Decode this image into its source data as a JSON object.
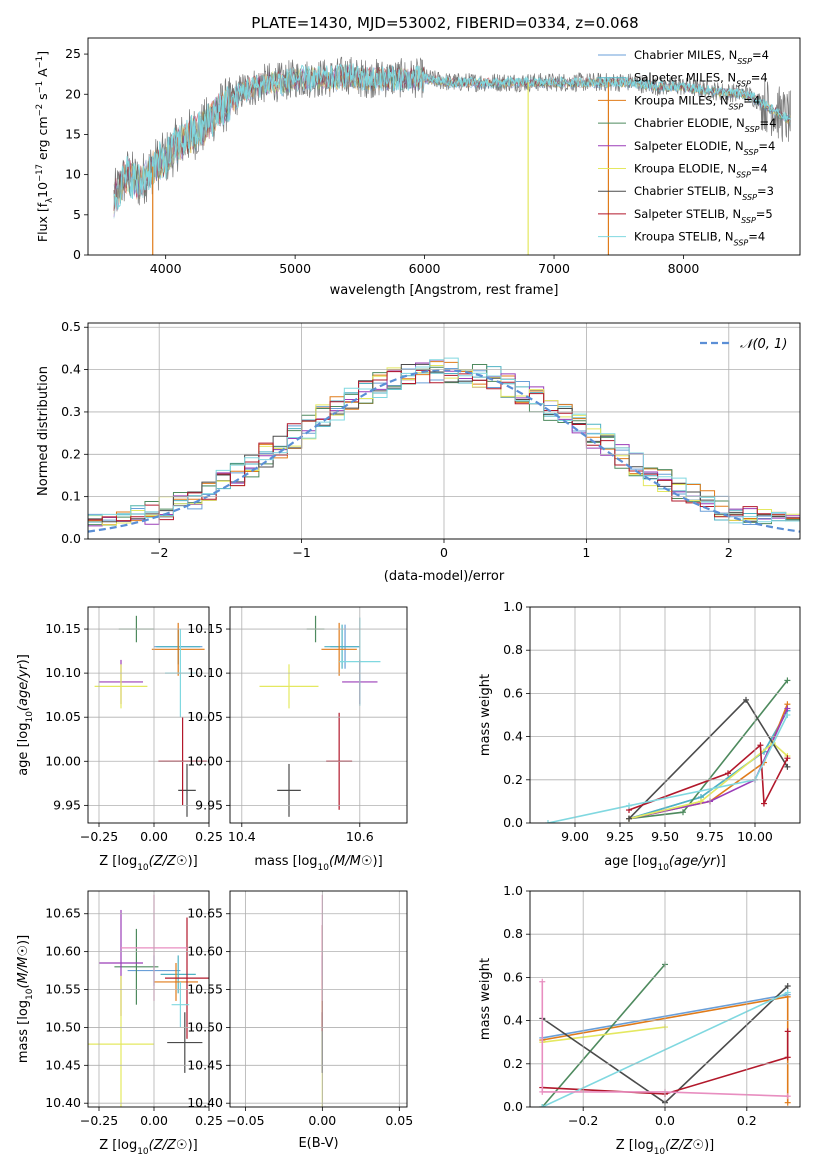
{
  "figure": {
    "title": "PLATE=1430, MJD=53002, FIBERID=0334, z=0.068"
  },
  "series_styles": [
    {
      "name": "Chabrier MILES",
      "color": "#6a9fd8"
    },
    {
      "name": "Salpeter MILES",
      "color": "#4fb3c4"
    },
    {
      "name": "Kroupa MILES",
      "color": "#e07b1a"
    },
    {
      "name": "Chabrier ELODIE",
      "color": "#4e8a5e"
    },
    {
      "name": "Salpeter ELODIE",
      "color": "#9b3db8"
    },
    {
      "name": "Kroupa ELODIE",
      "color": "#e4e860"
    },
    {
      "name": "Chabrier STELIB",
      "color": "#4b4b4b"
    },
    {
      "name": "Salpeter STELIB",
      "color": "#b2182b"
    },
    {
      "name": "Kroupa STELIB",
      "color": "#80d8e0"
    }
  ],
  "chart_data": [
    {
      "id": "spectrum",
      "type": "line",
      "xlabel": "wavelength [Angstrom, rest frame]",
      "ylabel": "Flux [f_λ10^-17 erg cm^-2 s^-1 A^-1]",
      "xlim": [
        3400,
        8900
      ],
      "ylim": [
        0,
        27
      ],
      "x_ticks": [
        4000,
        5000,
        6000,
        7000,
        8000
      ],
      "y_ticks": [
        0,
        5,
        10,
        15,
        20,
        25
      ],
      "grid": false,
      "legend_position": "top-right",
      "legend": [
        {
          "label": "Chabrier MILES, N_SSP=4",
          "color": "#6a9fd8"
        },
        {
          "label": "Salpeter MILES, N_SSP=4",
          "color": "#4fb3c4"
        },
        {
          "label": "Kroupa MILES, N_SSP=4",
          "color": "#e07b1a"
        },
        {
          "label": "Chabrier ELODIE, N_SSP=4",
          "color": "#4e8a5e"
        },
        {
          "label": "Salpeter ELODIE, N_SSP=4",
          "color": "#9b3db8"
        },
        {
          "label": "Kroupa ELODIE, N_SSP=4",
          "color": "#e4e860"
        },
        {
          "label": "Chabrier STELIB, N_SSP=3",
          "color": "#4b4b4b"
        },
        {
          "label": "Salpeter STELIB, N_SSP=5",
          "color": "#b2182b"
        },
        {
          "label": "Kroupa STELIB, N_SSP=4",
          "color": "#80d8e0"
        }
      ],
      "data_envelope": {
        "x": [
          3600,
          3700,
          3800,
          3900,
          4000,
          4100,
          4200,
          4300,
          4400,
          4500,
          4600,
          4700,
          4800,
          4900,
          5000,
          5100,
          5200,
          5300,
          5400,
          5500,
          5600,
          5700,
          5800,
          5900,
          6000,
          6200,
          6400,
          6600,
          6800,
          7000,
          7200,
          7400,
          7600,
          7800,
          8000,
          8200,
          8500,
          8800
        ],
        "y": [
          7,
          10,
          9,
          11,
          12,
          14,
          15,
          16,
          18,
          19,
          20.5,
          21,
          21.5,
          21.5,
          22,
          22,
          22,
          22,
          22.5,
          22,
          22,
          22,
          22,
          22,
          22,
          21.5,
          21.5,
          21.5,
          21.5,
          21.5,
          21.5,
          21.5,
          21.5,
          21,
          21,
          20.5,
          20,
          17
        ]
      },
      "vertical_drops": [
        {
          "x": 3900,
          "color": "#e07b1a"
        },
        {
          "x": 6800,
          "color": "#e4e860"
        },
        {
          "x": 7420,
          "color": "#e07b1a"
        }
      ]
    },
    {
      "id": "residual_histogram",
      "type": "histogram",
      "xlabel": "(data-model)/error",
      "ylabel": "Normed distribution",
      "xlim": [
        -2.5,
        2.5
      ],
      "ylim": [
        0,
        0.51
      ],
      "x_ticks": [
        -2,
        -1,
        0,
        1,
        2
      ],
      "y_ticks": [
        0,
        0.1,
        0.2,
        0.3,
        0.4,
        0.5
      ],
      "grid": true,
      "legend_position": "top-right",
      "legend": [
        {
          "label": "N(0,1)",
          "style": "dashed",
          "color": "#5b8fd6"
        }
      ],
      "bin_width": 0.1,
      "bin_start": -2.5,
      "gaussian": {
        "mean": 0,
        "sigma": 1,
        "color": "#5b8fd6"
      }
    },
    {
      "id": "age_vs_Z",
      "type": "errorbar",
      "xlabel": "Z [log10(Z/Z☉)]",
      "ylabel": "age [log10(age/yr)]",
      "xlim": [
        -0.3,
        0.25
      ],
      "ylim": [
        9.93,
        10.175
      ],
      "x_ticks": [
        -0.25,
        0.0,
        0.25
      ],
      "y_ticks": [
        9.95,
        10.0,
        10.05,
        10.1,
        10.15
      ],
      "grid": true,
      "points": [
        {
          "series": "Chabrier MILES",
          "x": 0.11,
          "y": 10.13,
          "xerr": 0.11,
          "yerr": 0.02
        },
        {
          "series": "Salpeter MILES",
          "x": 0.11,
          "y": 10.13,
          "xerr": 0.1,
          "yerr": 0.02
        },
        {
          "series": "Kroupa MILES",
          "x": 0.11,
          "y": 10.127,
          "xerr": 0.12,
          "yerr": 0.03
        },
        {
          "series": "Chabrier ELODIE",
          "x": -0.08,
          "y": 10.15,
          "xerr": 0.08,
          "yerr": 0.015
        },
        {
          "series": "Salpeter ELODIE",
          "x": -0.15,
          "y": 10.09,
          "xerr": 0.1,
          "yerr": 0.025
        },
        {
          "series": "Kroupa ELODIE",
          "x": -0.15,
          "y": 10.085,
          "xerr": 0.12,
          "yerr": 0.025
        },
        {
          "series": "Chabrier STELIB",
          "x": 0.15,
          "y": 9.967,
          "xerr": 0.04,
          "yerr": 0.03
        },
        {
          "series": "Salpeter STELIB",
          "x": 0.13,
          "y": 10.0,
          "xerr": 0.11,
          "yerr": 0.05
        },
        {
          "series": "Kroupa STELIB",
          "x": 0.12,
          "y": 10.1,
          "xerr": 0.07,
          "yerr": 0.05
        }
      ]
    },
    {
      "id": "age_vs_mass",
      "type": "errorbar",
      "xlabel": "mass [log10(M/M☉)]",
      "ylabel": "",
      "xlim": [
        10.38,
        10.68
      ],
      "ylim": [
        9.93,
        10.175
      ],
      "x_ticks": [
        10.4,
        10.6
      ],
      "y_ticks": [
        9.95,
        10.0,
        10.05,
        10.1,
        10.15
      ],
      "grid": true,
      "points": [
        {
          "series": "Chabrier MILES",
          "x": 10.575,
          "y": 10.13,
          "xerr": 0.025,
          "yerr": 0.025
        },
        {
          "series": "Salpeter MILES",
          "x": 10.57,
          "y": 10.13,
          "xerr": 0.03,
          "yerr": 0.025
        },
        {
          "series": "Kroupa MILES",
          "x": 10.565,
          "y": 10.127,
          "xerr": 0.03,
          "yerr": 0.03
        },
        {
          "series": "Chabrier ELODIE",
          "x": 10.525,
          "y": 10.15,
          "xerr": 0.015,
          "yerr": 0.015
        },
        {
          "series": "Salpeter ELODIE",
          "x": 10.6,
          "y": 10.09,
          "xerr": 0.03,
          "yerr": 0.025
        },
        {
          "series": "Kroupa ELODIE",
          "x": 10.48,
          "y": 10.085,
          "xerr": 0.05,
          "yerr": 0.025
        },
        {
          "series": "Chabrier STELIB",
          "x": 10.48,
          "y": 9.967,
          "xerr": 0.02,
          "yerr": 0.03
        },
        {
          "series": "Salpeter STELIB",
          "x": 10.565,
          "y": 10.0,
          "xerr": 0.022,
          "yerr": 0.055
        },
        {
          "series": "Kroupa STELIB",
          "x": 10.6,
          "y": 10.113,
          "xerr": 0.035,
          "yerr": 0.05
        }
      ]
    },
    {
      "id": "mass_weight_vs_age",
      "type": "line",
      "xlabel": "age [log10(age/yr)]",
      "ylabel": "mass weight",
      "xlim": [
        8.75,
        10.25
      ],
      "ylim": [
        0,
        1.0
      ],
      "x_ticks": [
        9.0,
        9.25,
        9.5,
        9.75,
        10.0
      ],
      "y_ticks": [
        0.0,
        0.2,
        0.4,
        0.6,
        0.8,
        1.0
      ],
      "grid": true,
      "series": [
        {
          "name": "Chabrier MILES",
          "x": [
            9.3,
            9.7,
            10.05,
            10.18
          ],
          "y": [
            0.02,
            0.12,
            0.33,
            0.52
          ]
        },
        {
          "name": "Salpeter MILES",
          "x": [
            9.3,
            9.7,
            10.05,
            10.18
          ],
          "y": [
            0.02,
            0.12,
            0.33,
            0.52
          ]
        },
        {
          "name": "Kroupa MILES",
          "x": [
            9.3,
            9.75,
            10.05,
            10.18
          ],
          "y": [
            0.02,
            0.1,
            0.28,
            0.55
          ]
        },
        {
          "name": "Chabrier ELODIE",
          "x": [
            9.3,
            9.6,
            10.18
          ],
          "y": [
            0.02,
            0.05,
            0.66
          ]
        },
        {
          "name": "Salpeter ELODIE",
          "x": [
            9.3,
            9.75,
            10.0,
            10.18
          ],
          "y": [
            0.02,
            0.1,
            0.2,
            0.53
          ]
        },
        {
          "name": "Kroupa ELODIE",
          "x": [
            9.3,
            9.7,
            10.1,
            10.18
          ],
          "y": [
            0.02,
            0.1,
            0.37,
            0.31
          ]
        },
        {
          "name": "Chabrier STELIB",
          "x": [
            9.3,
            9.95,
            10.18
          ],
          "y": [
            0.02,
            0.57,
            0.26
          ]
        },
        {
          "name": "Salpeter STELIB",
          "x": [
            9.3,
            9.85,
            10.03,
            10.05,
            10.18
          ],
          "y": [
            0.06,
            0.23,
            0.36,
            0.09,
            0.3
          ]
        },
        {
          "name": "Kroupa STELIB",
          "x": [
            8.85,
            9.3,
            10.0,
            10.18
          ],
          "y": [
            0.0,
            0.08,
            0.2,
            0.5
          ]
        }
      ]
    },
    {
      "id": "mass_vs_Z",
      "type": "errorbar",
      "xlabel": "Z [log10(Z/Z☉)]",
      "ylabel": "mass [log10(M/M☉)]",
      "xlim": [
        -0.3,
        0.25
      ],
      "ylim": [
        10.395,
        10.68
      ],
      "x_ticks": [
        -0.25,
        0.0,
        0.25
      ],
      "y_ticks": [
        10.4,
        10.45,
        10.5,
        10.55,
        10.6,
        10.65
      ],
      "grid": true,
      "points": [
        {
          "series": "Chabrier MILES",
          "x": 0.0,
          "y": 10.575,
          "xerr": 0.12,
          "yerr": 0.02
        },
        {
          "series": "Salpeter MILES",
          "x": 0.11,
          "y": 10.57,
          "xerr": 0.08,
          "yerr": 0.025
        },
        {
          "series": "Kroupa MILES",
          "x": 0.1,
          "y": 10.56,
          "xerr": 0.1,
          "yerr": 0.025
        },
        {
          "series": "Chabrier ELODIE",
          "x": -0.08,
          "y": 10.58,
          "xerr": 0.1,
          "yerr": 0.05
        },
        {
          "series": "Salpeter ELODIE",
          "x": -0.15,
          "y": 10.585,
          "xerr": 0.1,
          "yerr": 0.07
        },
        {
          "series": "Kroupa ELODIE",
          "x": -0.15,
          "y": 10.478,
          "xerr": 0.15,
          "yerr": 0.09
        },
        {
          "series": "Chabrier STELIB",
          "x": 0.14,
          "y": 10.48,
          "xerr": 0.08,
          "yerr": 0.04
        },
        {
          "series": "Salpeter STELIB",
          "x": 0.15,
          "y": 10.565,
          "xerr": 0.1,
          "yerr": 0.08
        },
        {
          "series": "Kroupa STELIB",
          "x": 0.12,
          "y": 10.53,
          "xerr": 0.04,
          "yerr": 0.03
        },
        {
          "series": "Pink",
          "x": 0.0,
          "y": 10.605,
          "xerr": 0.15,
          "yerr": 0.07
        }
      ]
    },
    {
      "id": "mass_vs_EBV",
      "type": "errorbar",
      "xlabel": "E(B-V)",
      "ylabel": "",
      "xlim": [
        -0.06,
        0.055
      ],
      "ylim": [
        10.395,
        10.68
      ],
      "x_ticks": [
        -0.05,
        0.0,
        0.05
      ],
      "y_ticks": [
        10.4,
        10.45,
        10.5,
        10.55,
        10.6,
        10.65
      ],
      "grid": true,
      "points": [
        {
          "series": "Chabrier MILES",
          "x": 0.0,
          "y": 10.575,
          "xerr": 0.0,
          "yerr": 0.02
        },
        {
          "series": "Kroupa ELODIE",
          "x": 0.0,
          "y": 10.478,
          "xerr": 0.0,
          "yerr": 0.09
        },
        {
          "series": "Chabrier STELIB",
          "x": 0.0,
          "y": 10.48,
          "xerr": 0.0,
          "yerr": 0.04
        },
        {
          "series": "Salpeter STELIB",
          "x": 0.0,
          "y": 10.565,
          "xerr": 0.0,
          "yerr": 0.07
        },
        {
          "series": "Pink",
          "x": 0.0,
          "y": 10.605,
          "xerr": 0.0,
          "yerr": 0.07
        }
      ]
    },
    {
      "id": "mass_weight_vs_Z",
      "type": "line",
      "xlabel": "Z [log10(Z/Z☉)]",
      "ylabel": "mass weight",
      "xlim": [
        -0.33,
        0.33
      ],
      "ylim": [
        0,
        1.0
      ],
      "x_ticks": [
        -0.2,
        0.0,
        0.2
      ],
      "y_ticks": [
        0.0,
        0.2,
        0.4,
        0.6,
        0.8,
        1.0
      ],
      "grid": true,
      "series": [
        {
          "name": "Chabrier MILES",
          "x": [
            -0.3,
            0.3
          ],
          "y": [
            0.32,
            0.52
          ]
        },
        {
          "name": "Kroupa MILES",
          "x": [
            -0.3,
            0.3,
            0.3
          ],
          "y": [
            0.31,
            0.51,
            0.02
          ]
        },
        {
          "name": "Chabrier ELODIE",
          "x": [
            -0.3,
            0.0
          ],
          "y": [
            0.0,
            0.66
          ]
        },
        {
          "name": "Kroupa ELODIE",
          "x": [
            -0.3,
            0.0
          ],
          "y": [
            0.3,
            0.37
          ]
        },
        {
          "name": "Chabrier STELIB",
          "x": [
            -0.3,
            0.0,
            0.3
          ],
          "y": [
            0.41,
            0.02,
            0.56
          ]
        },
        {
          "name": "Salpeter STELIB",
          "x": [
            -0.3,
            0.0,
            0.3,
            0.3
          ],
          "y": [
            0.09,
            0.06,
            0.23,
            0.35
          ]
        },
        {
          "name": "Kroupa STELIB",
          "x": [
            -0.3,
            0.3
          ],
          "y": [
            0.0,
            0.53
          ]
        },
        {
          "name": "Pink",
          "x": [
            -0.3,
            -0.3,
            0.0,
            0.3
          ],
          "y": [
            0.58,
            0.07,
            0.07,
            0.05
          ]
        }
      ]
    }
  ]
}
